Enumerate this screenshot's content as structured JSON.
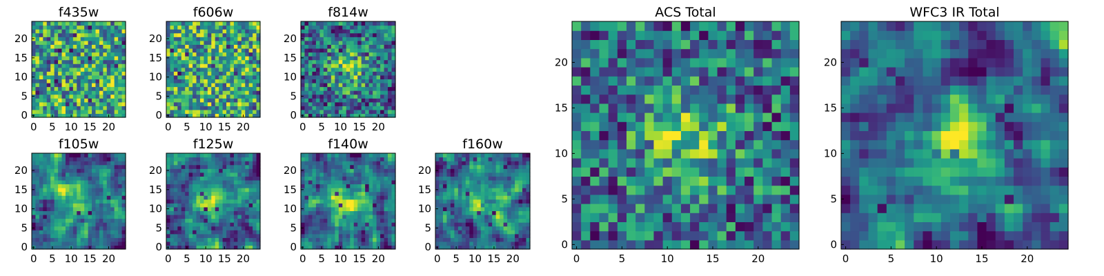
{
  "chart_data": [
    {
      "type": "heatmap",
      "title": "f435w",
      "xticks": [
        0,
        5,
        10,
        15,
        20
      ],
      "yticks": [
        0,
        5,
        10,
        15,
        20
      ],
      "grid_size": 25,
      "xlim": [
        0,
        24
      ],
      "ylim": [
        0,
        24
      ],
      "colormap": "viridis",
      "pattern": "noise",
      "seed": 11
    },
    {
      "type": "heatmap",
      "title": "f606w",
      "xticks": [
        0,
        5,
        10,
        15,
        20
      ],
      "yticks": [
        0,
        5,
        10,
        15,
        20
      ],
      "grid_size": 25,
      "xlim": [
        0,
        24
      ],
      "ylim": [
        0,
        24
      ],
      "colormap": "viridis",
      "pattern": "noise",
      "seed": 23
    },
    {
      "type": "heatmap",
      "title": "f814w",
      "xticks": [
        0,
        5,
        10,
        15,
        20
      ],
      "yticks": [
        0,
        5,
        10,
        15,
        20
      ],
      "grid_size": 25,
      "xlim": [
        0,
        24
      ],
      "ylim": [
        0,
        24
      ],
      "colormap": "viridis",
      "pattern": "noise-with-central-source",
      "seed": 37
    },
    {
      "type": "heatmap",
      "title": "f105w",
      "xticks": [
        0,
        5,
        10,
        15,
        20
      ],
      "yticks": [
        0,
        5,
        10,
        15,
        20
      ],
      "grid_size": 25,
      "xlim": [
        0,
        24
      ],
      "ylim": [
        0,
        24
      ],
      "colormap": "viridis",
      "pattern": "smoothed-noise-with-central-source",
      "seed": 41
    },
    {
      "type": "heatmap",
      "title": "f125w",
      "xticks": [
        0,
        5,
        10,
        15,
        20
      ],
      "yticks": [
        0,
        5,
        10,
        15,
        20
      ],
      "grid_size": 25,
      "xlim": [
        0,
        24
      ],
      "ylim": [
        0,
        24
      ],
      "colormap": "viridis",
      "pattern": "smoothed-noise-with-central-source",
      "seed": 53
    },
    {
      "type": "heatmap",
      "title": "f140w",
      "xticks": [
        0,
        5,
        10,
        15,
        20
      ],
      "yticks": [
        0,
        5,
        10,
        15,
        20
      ],
      "grid_size": 25,
      "xlim": [
        0,
        24
      ],
      "ylim": [
        0,
        24
      ],
      "colormap": "viridis",
      "pattern": "smoothed-noise-with-central-source",
      "seed": 67
    },
    {
      "type": "heatmap",
      "title": "f160w",
      "xticks": [
        0,
        5,
        10,
        15,
        20
      ],
      "yticks": [
        0,
        5,
        10,
        15,
        20
      ],
      "grid_size": 25,
      "xlim": [
        0,
        24
      ],
      "ylim": [
        0,
        24
      ],
      "colormap": "viridis",
      "pattern": "smoothed-noise-with-central-source",
      "seed": 79
    },
    {
      "type": "heatmap",
      "title": "ACS Total",
      "xticks": [
        0,
        5,
        10,
        15,
        20
      ],
      "yticks": [
        0,
        5,
        10,
        15,
        20
      ],
      "grid_size": 25,
      "xlim": [
        0,
        24
      ],
      "ylim": [
        0,
        24
      ],
      "colormap": "viridis",
      "pattern": "noise-with-central-source",
      "seed": 97
    },
    {
      "type": "heatmap",
      "title": "WFC3 IR Total",
      "xticks": [
        0,
        5,
        10,
        15,
        20
      ],
      "yticks": [
        0,
        5,
        10,
        15,
        20
      ],
      "grid_size": 25,
      "xlim": [
        0,
        24
      ],
      "ylim": [
        0,
        24
      ],
      "colormap": "viridis",
      "pattern": "smoothed-noise-with-central-source",
      "seed": 101
    }
  ]
}
